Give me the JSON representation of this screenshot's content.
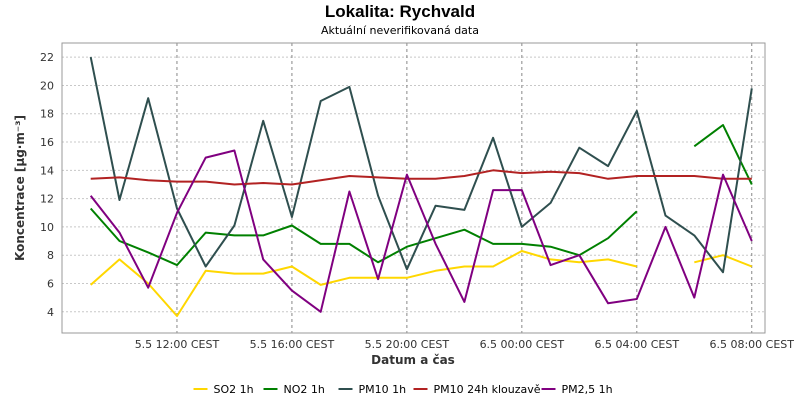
{
  "chart_data": {
    "type": "line",
    "title": "Lokalita: Rychvald",
    "subtitle": "Aktuální neverifikovaná data",
    "xlabel": "Datum a čas",
    "ylabel": "Koncentrace [µg·m⁻³]",
    "ylim": [
      2.5,
      23
    ],
    "yticks": [
      4,
      6,
      8,
      10,
      12,
      14,
      16,
      18,
      20,
      22
    ],
    "x_ticks": [
      {
        "label": "5.5 12:00 CEST",
        "hour": 12
      },
      {
        "label": "5.5 16:00 CEST",
        "hour": 16
      },
      {
        "label": "5.5 20:00 CEST",
        "hour": 20
      },
      {
        "label": "6.5 00:00 CEST",
        "hour": 24
      },
      {
        "label": "6.5 04:00 CEST",
        "hour": 28
      },
      {
        "label": "6.5 08:00 CEST",
        "hour": 32
      }
    ],
    "x_hours": [
      9,
      10,
      11,
      12,
      13,
      14,
      15,
      16,
      17,
      18,
      19,
      20,
      21,
      22,
      23,
      24,
      25,
      26,
      27,
      28,
      29,
      30,
      31,
      32
    ],
    "grid": true,
    "legend_position": "bottom",
    "series": [
      {
        "name": "SO2 1h",
        "color": "#FFD700",
        "values": [
          5.9,
          7.7,
          6.0,
          3.7,
          6.9,
          6.7,
          6.7,
          7.2,
          5.9,
          6.4,
          6.4,
          6.4,
          6.9,
          7.2,
          7.2,
          8.3,
          7.7,
          7.5,
          7.7,
          7.2,
          null,
          7.5,
          8.0,
          7.2
        ]
      },
      {
        "name": "NO2 1h",
        "color": "#008000",
        "values": [
          11.3,
          9.0,
          8.2,
          7.3,
          9.6,
          9.4,
          9.4,
          10.1,
          8.8,
          8.8,
          7.5,
          8.6,
          9.2,
          9.8,
          8.8,
          8.8,
          8.6,
          8.0,
          9.2,
          11.1,
          null,
          15.7,
          17.2,
          13.0
        ]
      },
      {
        "name": "PM10 1h",
        "color": "#2F4F4F",
        "values": [
          22.0,
          11.9,
          19.1,
          11.3,
          7.2,
          10.1,
          17.5,
          10.7,
          18.9,
          19.9,
          12.2,
          7.0,
          11.5,
          11.2,
          16.3,
          10.0,
          11.7,
          15.6,
          14.3,
          18.2,
          10.8,
          9.4,
          6.8,
          19.8
        ]
      },
      {
        "name": "PM10 24h klouzavě",
        "color": "#B22222",
        "values": [
          13.4,
          13.5,
          13.3,
          13.2,
          13.2,
          13.0,
          13.1,
          13.0,
          13.3,
          13.6,
          13.5,
          13.4,
          13.4,
          13.6,
          14.0,
          13.8,
          13.9,
          13.8,
          13.4,
          13.6,
          13.6,
          13.6,
          13.4,
          13.4
        ]
      },
      {
        "name": "PM2,5 1h",
        "color": "#800080",
        "values": [
          12.2,
          9.6,
          5.7,
          11.0,
          14.9,
          15.4,
          7.7,
          5.5,
          4.0,
          12.5,
          6.3,
          13.7,
          8.8,
          4.7,
          12.6,
          12.6,
          7.3,
          8.0,
          4.6,
          4.9,
          10.0,
          5.0,
          13.7,
          9.0
        ]
      }
    ]
  }
}
